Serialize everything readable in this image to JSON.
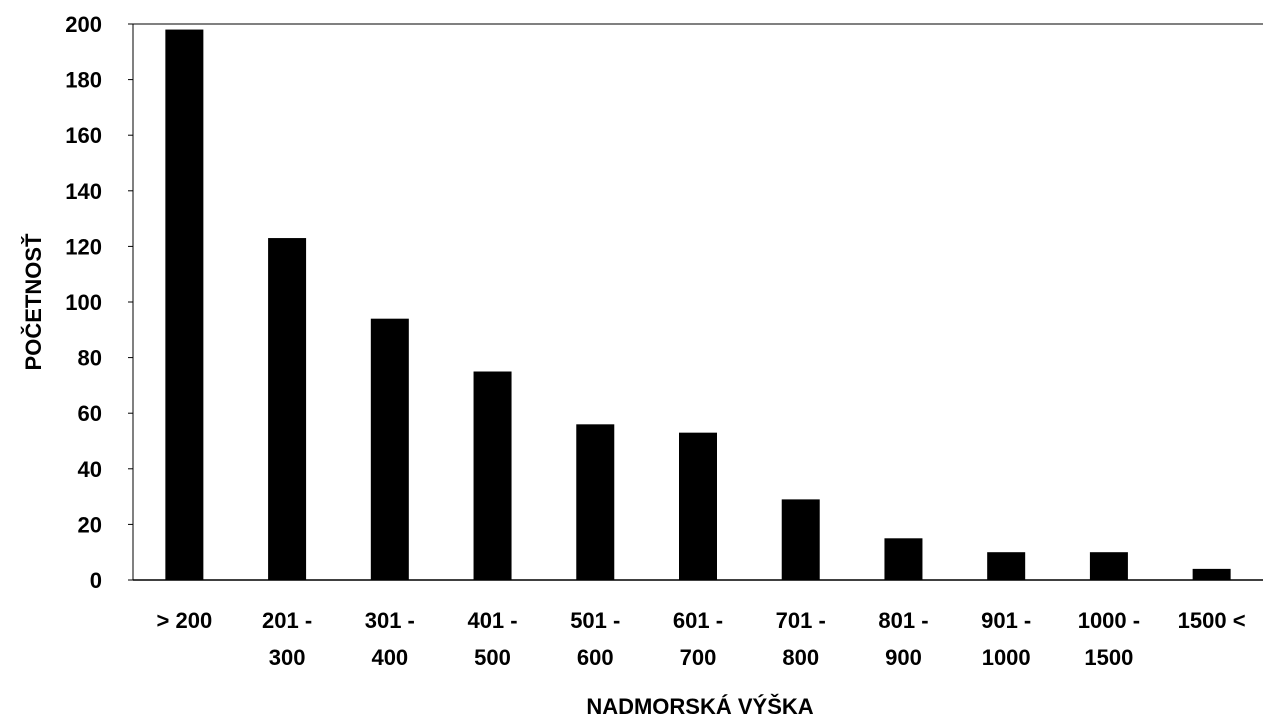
{
  "chart_data": {
    "type": "bar",
    "title": "",
    "xlabel": "NADMORSKÁ VÝŠKA",
    "ylabel": "POČETNOSŤ",
    "categories": [
      "> 200",
      "201 - 300",
      "301 - 400",
      "401 - 500",
      "501 - 600",
      "601 - 700",
      "701 - 800",
      "801 - 900",
      "901 - 1000",
      "1000 - 1500",
      "1500 <"
    ],
    "category_lines": [
      [
        "> 200"
      ],
      [
        "201 -",
        "300"
      ],
      [
        "301 -",
        "400"
      ],
      [
        "401 -",
        "500"
      ],
      [
        "501 -",
        "600"
      ],
      [
        "601 -",
        "700"
      ],
      [
        "701 -",
        "800"
      ],
      [
        "801 -",
        "900"
      ],
      [
        "901 -",
        "1000"
      ],
      [
        "1000 -",
        "1500"
      ],
      [
        "1500 <"
      ]
    ],
    "values": [
      198,
      123,
      94,
      75,
      56,
      53,
      29,
      15,
      10,
      10,
      4
    ],
    "ylim": [
      0,
      200
    ],
    "yticks": [
      0,
      20,
      40,
      60,
      80,
      100,
      120,
      140,
      160,
      180,
      200
    ],
    "grid": false,
    "legend": "none",
    "bar_color": "#000000"
  }
}
